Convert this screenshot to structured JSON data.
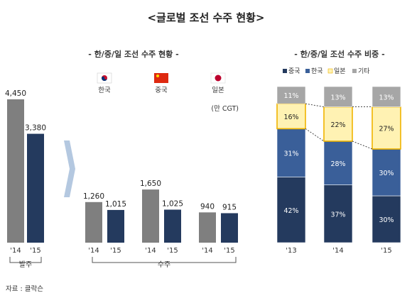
{
  "title": "<글로벌 조선 수주 현황>",
  "source": "자료 : 클락슨",
  "colors": {
    "gray": "#7f7f7f",
    "navy": "#243a5e",
    "gray_light": "#a6a6a6",
    "blue": "#3a5f99",
    "yellow": "#fff2b3",
    "yellow_border": "#f0b400"
  },
  "chart_data": [
    {
      "type": "bar",
      "name": "orders",
      "categories": [
        "'14",
        "'15"
      ],
      "values": [
        4450,
        3380
      ],
      "group_label": "발주"
    },
    {
      "type": "bar",
      "title": "- 한/중/일 조선 수주 현황 -",
      "unit_label": "(만 CGT)",
      "group_label": "수주",
      "countries": [
        {
          "name": "한국",
          "flag": "korea-flag-icon",
          "categories": [
            "'14",
            "'15"
          ],
          "values": [
            1260,
            1015
          ]
        },
        {
          "name": "중국",
          "flag": "china-flag-icon",
          "categories": [
            "'14",
            "'15"
          ],
          "values": [
            1650,
            1025
          ]
        },
        {
          "name": "일본",
          "flag": "japan-flag-icon",
          "categories": [
            "'14",
            "'15"
          ],
          "values": [
            940,
            915
          ]
        }
      ],
      "ylim": [
        0,
        4450
      ]
    },
    {
      "type": "bar",
      "stacked": true,
      "title": "- 한/중/일 조선 수주 비중 -",
      "categories": [
        "'13",
        "'14",
        "'15"
      ],
      "series": [
        {
          "name": "중국",
          "values": [
            42,
            37,
            30
          ],
          "labels": [
            "42%",
            "37%",
            "30%"
          ]
        },
        {
          "name": "한국",
          "values": [
            31,
            28,
            30
          ],
          "labels": [
            "31%",
            "28%",
            "30%"
          ]
        },
        {
          "name": "일본",
          "values": [
            16,
            22,
            27
          ],
          "labels": [
            "16%",
            "22%",
            "27%"
          ]
        },
        {
          "name": "기타",
          "values": [
            11,
            13,
            13
          ],
          "labels": [
            "11%",
            "13%",
            "13%"
          ]
        }
      ],
      "ylim": [
        0,
        100
      ]
    }
  ]
}
